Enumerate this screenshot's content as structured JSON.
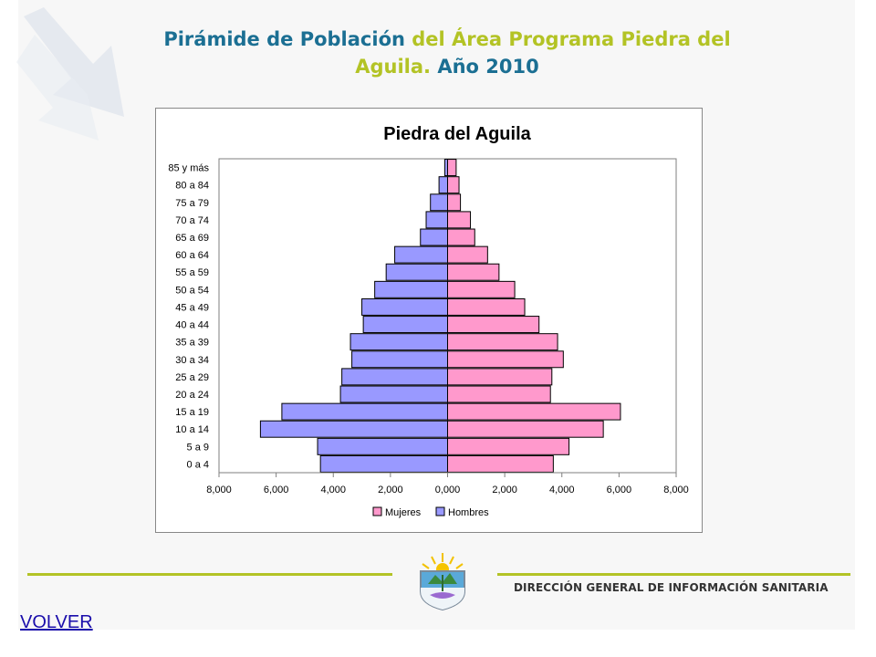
{
  "slide": {
    "title_part1": "Pirámide de Población",
    "title_part2": "del Área Programa Piedra del",
    "title_part3": "Aguila.",
    "title_part4": "Año 2010"
  },
  "footer": {
    "org_name": "DIRECCIÓN GENERAL DE INFORMACIÓN SANITARIA",
    "volver_label": "VOLVER"
  },
  "colors": {
    "title_blue": "#1b6f93",
    "title_green": "#b3c325",
    "mujeres": "#ff99cc",
    "hombres": "#9999ff"
  },
  "chart_data": {
    "type": "bar",
    "orientation": "horizontal-population-pyramid",
    "title": "Piedra del Aguila",
    "categories": [
      "0 a 4",
      "5 a 9",
      "10 a 14",
      "15 a 19",
      "20 a 24",
      "25 a 29",
      "30 a 34",
      "35 a 39",
      "40 a 44",
      "45 a 49",
      "50 a 54",
      "55 a 59",
      "60 a 64",
      "65 a 69",
      "70 a 74",
      "75 a 79",
      "80 a 84",
      "85 y más"
    ],
    "series": [
      {
        "name": "Mujeres",
        "color": "#ff99cc",
        "side": "right",
        "values": [
          3700,
          4250,
          5450,
          6050,
          3600,
          3650,
          4050,
          3850,
          3200,
          2700,
          2350,
          1800,
          1400,
          950,
          800,
          450,
          400,
          300
        ]
      },
      {
        "name": "Hombres",
        "color": "#9999ff",
        "side": "left",
        "values": [
          4450,
          4550,
          6550,
          5800,
          3750,
          3700,
          3350,
          3400,
          2950,
          3000,
          2550,
          2150,
          1850,
          950,
          750,
          600,
          300,
          100
        ]
      }
    ],
    "x_ticks": [
      "8,000",
      "6,000",
      "4,000",
      "2,000",
      "0,000",
      "2,000",
      "4,000",
      "6,000",
      "8,000"
    ],
    "xlim": [
      -8000,
      8000
    ],
    "legend": {
      "placement": "bottom",
      "entries": [
        "Mujeres",
        "Hombres"
      ]
    },
    "grid": false
  }
}
